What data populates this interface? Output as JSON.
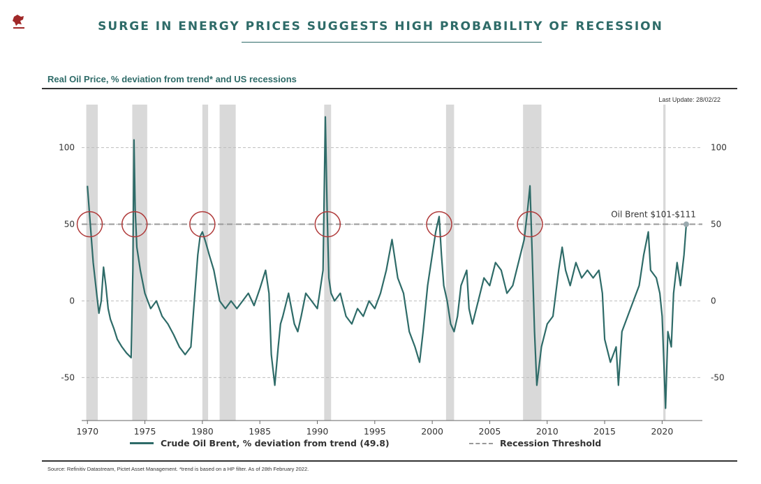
{
  "header": {
    "title": "SURGE IN ENERGY PRICES SUGGESTS HIGH PROBABILITY OF RECESSION",
    "subtitle": "Real Oil Price, % deviation from trend* and US recessions",
    "last_update": "Last Update: 28/02/22"
  },
  "colors": {
    "series": "#2e6b68",
    "title": "#2e6b68",
    "recession_band": "#d9d9d9",
    "threshold": "#999999",
    "marker_circle": "#b03a3a",
    "text": "#333333"
  },
  "legend": {
    "series_label": "Crude Oil Brent, % deviation from trend (49.8)",
    "threshold_label": "Recession Threshold"
  },
  "footer": {
    "source": "Source: Refinitiv Datastream, Pictet Asset Management. *trend is based on a HP filter. As of 28th February 2022."
  },
  "chart_data": {
    "type": "line",
    "title": "Real Oil Price, % deviation from trend* and US recessions",
    "xlim": [
      1969.5,
      2023.5
    ],
    "ylim": [
      -78,
      128
    ],
    "x_ticks": [
      1970,
      1975,
      1980,
      1985,
      1990,
      1995,
      2000,
      2005,
      2010,
      2015,
      2020
    ],
    "y_ticks": [
      -50,
      0,
      50,
      100
    ],
    "grid": "horizontal dashed at y ticks",
    "legend_position": "bottom",
    "recession_threshold": 50,
    "annotation": "Oil Brent $101-$111",
    "recessions": [
      [
        1969.9,
        1970.9
      ],
      [
        1973.9,
        1975.2
      ],
      [
        1980.0,
        1980.5
      ],
      [
        1981.5,
        1982.9
      ],
      [
        1990.6,
        1991.2
      ],
      [
        2001.2,
        2001.9
      ],
      [
        2007.9,
        2009.5
      ],
      [
        2020.1,
        2020.3
      ]
    ],
    "circles_at_threshold": [
      1970.2,
      1974.1,
      1980.0,
      1990.9,
      2000.6,
      2008.5
    ],
    "series": [
      {
        "name": "Crude Oil Brent, % deviation from trend (49.8)",
        "x": [
          1970.0,
          1970.2,
          1970.5,
          1970.8,
          1971.0,
          1971.2,
          1971.4,
          1971.6,
          1971.8,
          1972.0,
          1972.3,
          1972.6,
          1973.0,
          1973.4,
          1973.8,
          1973.95,
          1974.05,
          1974.15,
          1974.3,
          1974.6,
          1975.0,
          1975.5,
          1976.0,
          1976.5,
          1977.0,
          1977.5,
          1978.0,
          1978.5,
          1979.0,
          1979.3,
          1979.6,
          1979.8,
          1980.0,
          1980.3,
          1980.6,
          1981.0,
          1981.5,
          1982.0,
          1982.5,
          1983.0,
          1983.5,
          1984.0,
          1984.5,
          1985.0,
          1985.5,
          1985.8,
          1986.0,
          1986.3,
          1986.6,
          1986.8,
          1987.0,
          1987.5,
          1988.0,
          1988.3,
          1988.6,
          1989.0,
          1989.5,
          1990.0,
          1990.5,
          1990.7,
          1990.85,
          1991.0,
          1991.2,
          1991.5,
          1992.0,
          1992.5,
          1993.0,
          1993.5,
          1994.0,
          1994.5,
          1995.0,
          1995.5,
          1996.0,
          1996.5,
          1997.0,
          1997.5,
          1998.0,
          1998.5,
          1998.9,
          1999.2,
          1999.6,
          2000.0,
          2000.3,
          2000.6,
          2000.8,
          2001.0,
          2001.3,
          2001.6,
          2001.9,
          2002.2,
          2002.5,
          2003.0,
          2003.2,
          2003.5,
          2004.0,
          2004.5,
          2005.0,
          2005.5,
          2006.0,
          2006.5,
          2007.0,
          2007.5,
          2008.0,
          2008.3,
          2008.5,
          2008.7,
          2008.9,
          2009.1,
          2009.5,
          2010.0,
          2010.5,
          2011.0,
          2011.3,
          2011.6,
          2012.0,
          2012.5,
          2013.0,
          2013.5,
          2014.0,
          2014.5,
          2014.8,
          2015.0,
          2015.5,
          2016.0,
          2016.2,
          2016.5,
          2017.0,
          2017.5,
          2018.0,
          2018.4,
          2018.8,
          2019.0,
          2019.5,
          2019.8,
          2020.0,
          2020.3,
          2020.5,
          2020.8,
          2021.0,
          2021.3,
          2021.6,
          2021.9,
          2022.1
        ],
        "y": [
          75,
          55,
          25,
          5,
          -8,
          0,
          22,
          10,
          -5,
          -12,
          -18,
          -25,
          -30,
          -34,
          -37,
          20,
          105,
          60,
          35,
          20,
          5,
          -5,
          0,
          -10,
          -15,
          -22,
          -30,
          -35,
          -30,
          0,
          30,
          42,
          45,
          38,
          30,
          20,
          0,
          -5,
          0,
          -5,
          0,
          5,
          -3,
          8,
          20,
          5,
          -35,
          -55,
          -30,
          -15,
          -10,
          5,
          -15,
          -20,
          -10,
          5,
          0,
          -5,
          20,
          120,
          60,
          15,
          5,
          0,
          5,
          -10,
          -15,
          -5,
          -10,
          0,
          -5,
          5,
          20,
          40,
          15,
          5,
          -20,
          -30,
          -40,
          -20,
          10,
          30,
          45,
          55,
          30,
          10,
          0,
          -15,
          -20,
          -10,
          10,
          20,
          -5,
          -15,
          0,
          15,
          10,
          25,
          20,
          5,
          10,
          25,
          40,
          60,
          75,
          30,
          -20,
          -55,
          -30,
          -15,
          -10,
          20,
          35,
          20,
          10,
          25,
          15,
          20,
          15,
          20,
          5,
          -25,
          -40,
          -30,
          -55,
          -20,
          -10,
          0,
          10,
          30,
          45,
          20,
          15,
          5,
          -10,
          -70,
          -20,
          -30,
          5,
          25,
          10,
          30,
          50
        ]
      }
    ]
  }
}
